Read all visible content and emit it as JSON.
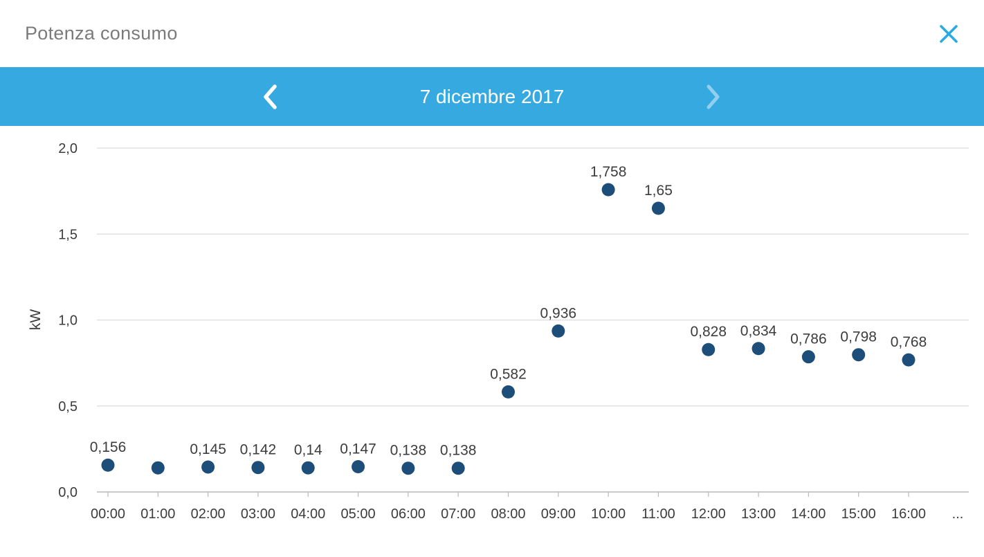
{
  "header": {
    "title": "Potenza consumo",
    "close_icon": "close-x"
  },
  "date_nav": {
    "date_label": "7 dicembre 2017",
    "prev_icon": "chevron-left",
    "next_icon": "chevron-right"
  },
  "chart_data": {
    "type": "scatter",
    "title": "",
    "ylabel": "kW",
    "xlabel": "",
    "ylim": [
      0,
      2
    ],
    "ytick_values": [
      0,
      0.5,
      1,
      1.5,
      2
    ],
    "ytick_labels": [
      "0,0",
      "0,5",
      "1,0",
      "1,5",
      "2,0"
    ],
    "categories": [
      "00:00",
      "01:00",
      "02:00",
      "03:00",
      "04:00",
      "05:00",
      "06:00",
      "07:00",
      "08:00",
      "09:00",
      "10:00",
      "11:00",
      "12:00",
      "13:00",
      "14:00",
      "15:00",
      "16:00"
    ],
    "values": [
      0.156,
      0.14,
      0.145,
      0.142,
      0.14,
      0.147,
      0.138,
      0.138,
      0.582,
      0.936,
      1.758,
      1.65,
      0.828,
      0.834,
      0.786,
      0.798,
      0.768
    ],
    "point_labels": [
      "0,156",
      "",
      "0,145",
      "0,142",
      "0,14",
      "0,147",
      "0,138",
      "0,138",
      "0,582",
      "0,936",
      "1,758",
      "1,65",
      "0,828",
      "0,834",
      "0,786",
      "0,798",
      "0,768"
    ],
    "x_overflow_label": "...",
    "grid": true,
    "legend": "none"
  },
  "colors": {
    "accent_blue": "#36a9e1",
    "close_icon_blue": "#29abe2",
    "point_color": "#1d4e79",
    "title_gray": "#7b7b7b",
    "gridline": "#dcdcdc",
    "axis_line": "#b9b9b9",
    "label_text": "#3c3c3c"
  }
}
